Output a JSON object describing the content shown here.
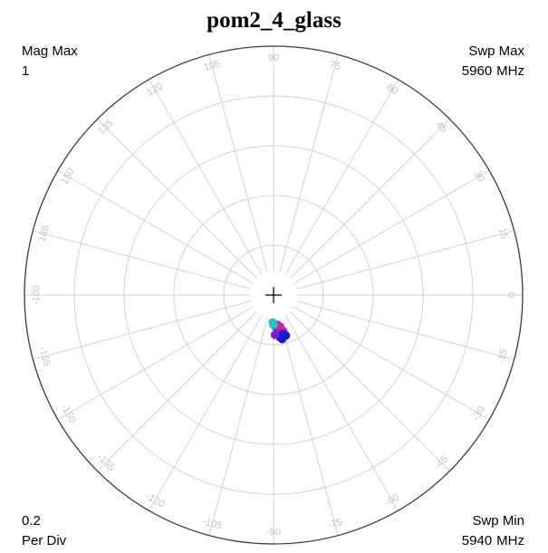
{
  "chart_data": {
    "type": "scatter",
    "subtype": "polar",
    "title": "pom2_4_glass",
    "magnitude_max": {
      "label": "Mag Max",
      "value": "1"
    },
    "per_division": {
      "value": "0.2",
      "label": "Per Div"
    },
    "sweep_max": {
      "label": "Swp Max",
      "value": "5960",
      "unit": "MHz"
    },
    "sweep_min": {
      "label": "Swp Min",
      "value": "5940",
      "unit": "MHz"
    },
    "radial_max": 1,
    "radial_step": 0.2,
    "angle_ticks": [
      0,
      15,
      30,
      45,
      60,
      75,
      90,
      105,
      120,
      135,
      150,
      165,
      -180,
      -165,
      -150,
      -135,
      -120,
      -105,
      -90,
      -75,
      -60,
      -45,
      -30,
      -15
    ],
    "grid": true,
    "series": [
      {
        "color": "#7a1fd6",
        "points": [
          {
            "r": 0.14,
            "theta": -80
          },
          {
            "r": 0.15,
            "theta": -84
          },
          {
            "r": 0.16,
            "theta": -88
          },
          {
            "r": 0.17,
            "theta": -82
          },
          {
            "r": 0.13,
            "theta": -86
          }
        ]
      },
      {
        "color": "#d6239a",
        "points": [
          {
            "r": 0.13,
            "theta": -78
          },
          {
            "r": 0.15,
            "theta": -75
          },
          {
            "r": 0.12,
            "theta": -83
          }
        ]
      },
      {
        "color": "#1a1ad6",
        "points": [
          {
            "r": 0.16,
            "theta": -76
          },
          {
            "r": 0.18,
            "theta": -79
          },
          {
            "r": 0.17,
            "theta": -73
          }
        ]
      },
      {
        "color": "#1fc7c7",
        "points": [
          {
            "r": 0.11,
            "theta": -92
          },
          {
            "r": 0.12,
            "theta": -90
          }
        ]
      }
    ]
  }
}
